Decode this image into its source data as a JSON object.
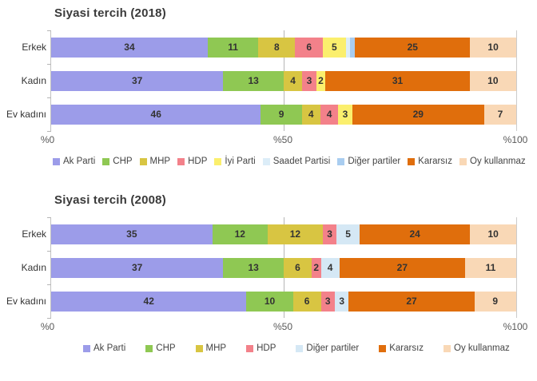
{
  "page_title": "Siyasi tercih",
  "axis_tick_labels": [
    "%0",
    "%50",
    "%100"
  ],
  "label_min_value": 2,
  "chart_data": [
    {
      "type": "bar",
      "orientation": "horizontal-stacked",
      "title": "Siyasi tercih (2018)",
      "categories": [
        "Erkek",
        "Kadın",
        "Ev kadını"
      ],
      "x_axis": {
        "tick_labels": [
          "%0",
          "%50",
          "%100"
        ],
        "range": [
          0,
          100
        ],
        "gridlines_at": [
          50,
          100
        ]
      },
      "legend_position": "bottom",
      "series": [
        {
          "name": "Ak Parti",
          "color": "#9c9ce9",
          "values": [
            34,
            37,
            46
          ]
        },
        {
          "name": "CHP",
          "color": "#8fc853",
          "values": [
            11,
            13,
            9
          ]
        },
        {
          "name": "MHP",
          "color": "#d8c542",
          "values": [
            8,
            4,
            4
          ]
        },
        {
          "name": "HDP",
          "color": "#f3818a",
          "values": [
            6,
            3,
            4
          ]
        },
        {
          "name": "İyi Parti",
          "color": "#fbef6d",
          "values": [
            5,
            2,
            3
          ]
        },
        {
          "name": "Saadet Partisi",
          "color": "#dcedf8",
          "values": [
            1,
            0,
            0
          ]
        },
        {
          "name": "Diğer partiler",
          "color": "#a9cdf0",
          "values": [
            1,
            0,
            0
          ]
        },
        {
          "name": "Kararsız",
          "color": "#e06e0c",
          "values": [
            25,
            31,
            29
          ]
        },
        {
          "name": "Oy kullanmaz",
          "color": "#f9d8b6",
          "values": [
            10,
            10,
            7
          ]
        }
      ]
    },
    {
      "type": "bar",
      "orientation": "horizontal-stacked",
      "title": "Siyasi tercih (2008)",
      "categories": [
        "Erkek",
        "Kadın",
        "Ev kadını"
      ],
      "x_axis": {
        "tick_labels": [
          "%0",
          "%50",
          "%100"
        ],
        "range": [
          0,
          100
        ],
        "gridlines_at": [
          50,
          100
        ]
      },
      "legend_position": "bottom",
      "series": [
        {
          "name": "Ak Parti",
          "color": "#9c9ce9",
          "values": [
            35,
            37,
            42
          ]
        },
        {
          "name": "CHP",
          "color": "#8fc853",
          "values": [
            12,
            13,
            10
          ]
        },
        {
          "name": "MHP",
          "color": "#d8c542",
          "values": [
            12,
            6,
            6
          ]
        },
        {
          "name": "HDP",
          "color": "#f3818a",
          "values": [
            3,
            2,
            3
          ]
        },
        {
          "name": "Diğer partiler",
          "color": "#d5e8f5",
          "values": [
            5,
            4,
            3
          ]
        },
        {
          "name": "Kararsız",
          "color": "#e06e0c",
          "values": [
            24,
            27,
            27
          ]
        },
        {
          "name": "Oy kullanmaz",
          "color": "#f9d8b6",
          "values": [
            10,
            11,
            9
          ]
        }
      ]
    }
  ]
}
